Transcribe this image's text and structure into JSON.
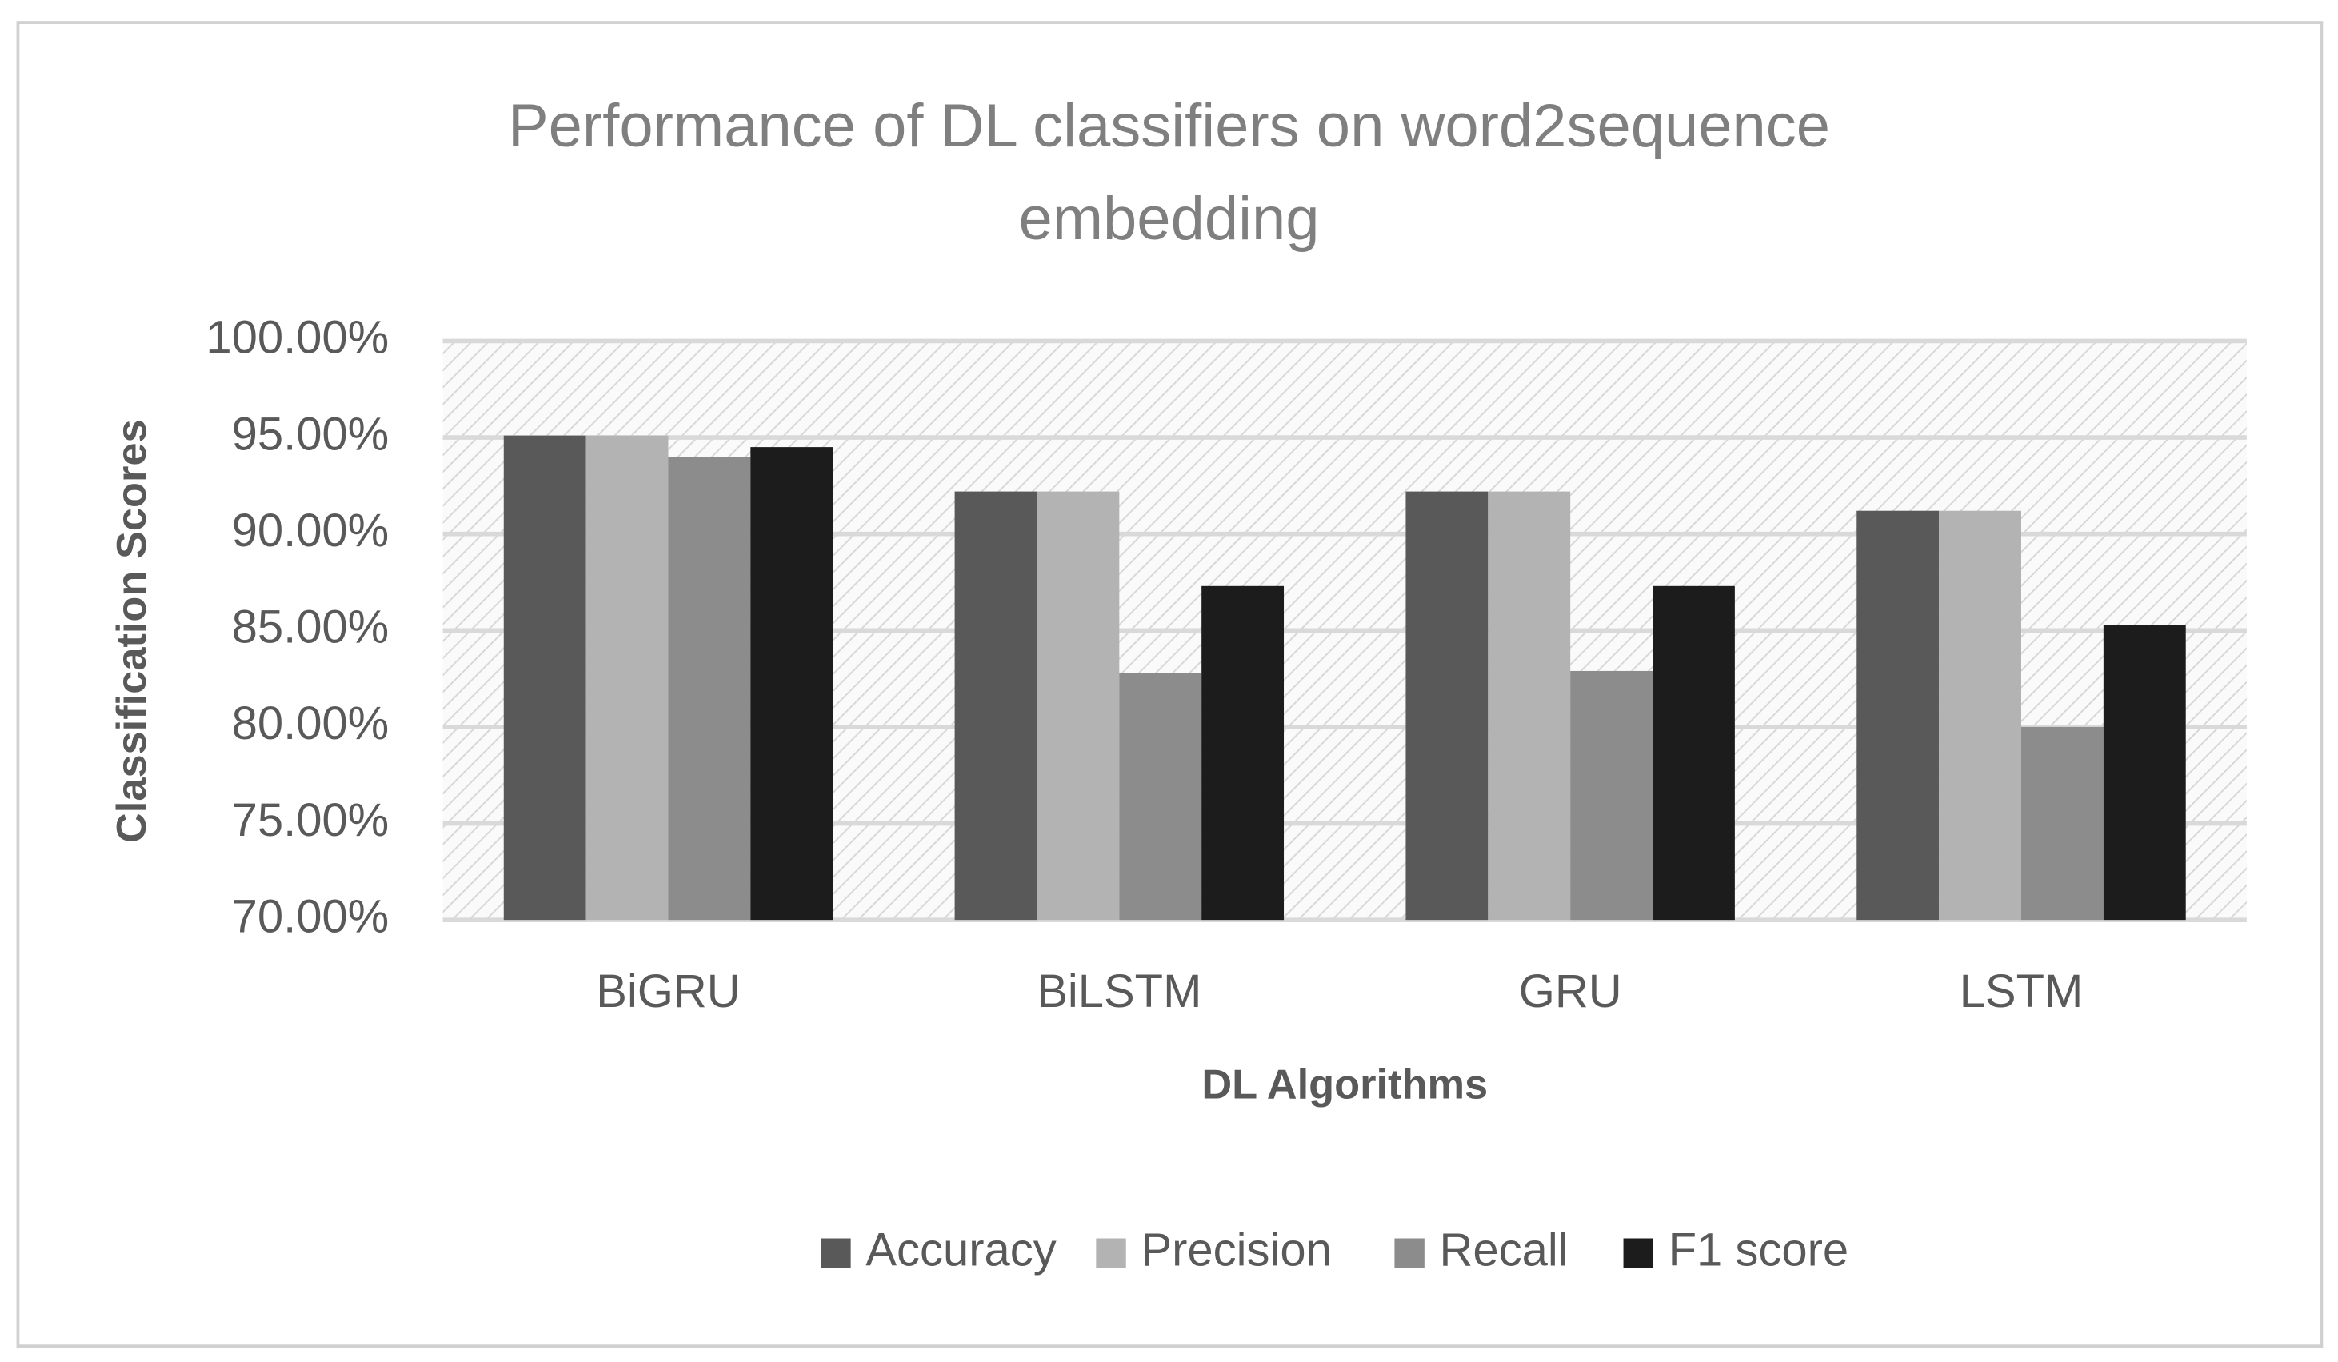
{
  "chart_data": {
    "type": "bar",
    "title": "Performance of DL classifiers on word2sequence embedding",
    "x_label": "DL Algorithms",
    "y_label": "Classification Scores",
    "categories": [
      "BiGRU",
      "BiLSTM",
      "GRU",
      "LSTM"
    ],
    "series": [
      {
        "name": "Accuracy",
        "color": "#595959",
        "values": [
          95.1,
          92.2,
          92.2,
          91.2
        ]
      },
      {
        "name": "Precision",
        "color": "#b3b3b3",
        "values": [
          95.1,
          92.2,
          92.2,
          91.2
        ]
      },
      {
        "name": "Recall",
        "color": "#8c8c8c",
        "values": [
          94.0,
          82.8,
          82.9,
          80.0
        ]
      },
      {
        "name": "F1 score",
        "color": "#1c1c1c",
        "values": [
          94.5,
          87.3,
          87.3,
          85.3
        ]
      }
    ],
    "ylim": [
      70,
      100
    ],
    "yticks": [
      {
        "value": 70,
        "label": "70.00%"
      },
      {
        "value": 75,
        "label": "75.00%"
      },
      {
        "value": 80,
        "label": "80.00%"
      },
      {
        "value": 85,
        "label": "85.00%"
      },
      {
        "value": 90,
        "label": "90.00%"
      },
      {
        "value": 95,
        "label": "95.00%"
      },
      {
        "value": 100,
        "label": "100.00%"
      }
    ],
    "grid": true,
    "legend": "bottom"
  }
}
